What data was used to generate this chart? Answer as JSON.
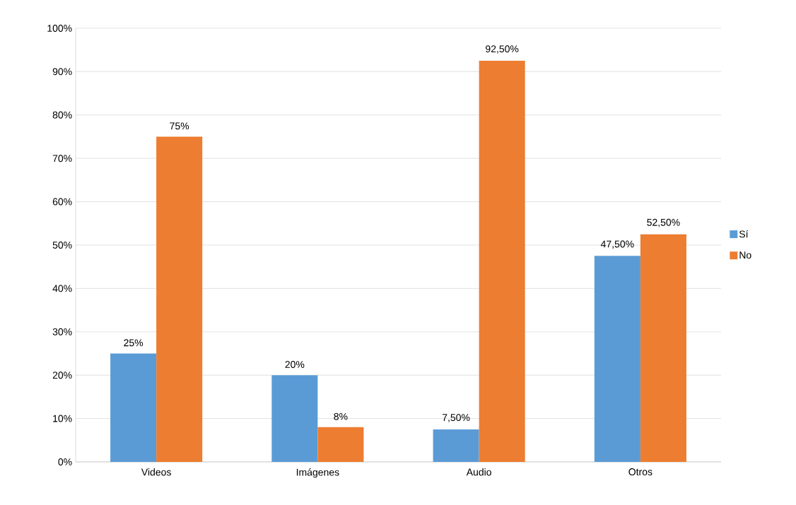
{
  "chart_data": {
    "type": "bar",
    "categories": [
      "Videos",
      "Imágenes",
      "Audio",
      "Otros"
    ],
    "series": [
      {
        "name": "Sí",
        "color": "#5b9bd5",
        "values": [
          25,
          20,
          7.5,
          47.5
        ],
        "value_labels": [
          "25%",
          "20%",
          "7,50%",
          "47,50%"
        ]
      },
      {
        "name": "No",
        "color": "#ed7d31",
        "values": [
          75,
          8,
          92.5,
          52.5
        ],
        "value_labels": [
          "75%",
          "8%",
          "92,50%",
          "52,50%"
        ]
      }
    ],
    "ylim": [
      0,
      100
    ],
    "yticks": [
      {
        "value": 0,
        "label": "0%"
      },
      {
        "value": 10,
        "label": "10%"
      },
      {
        "value": 20,
        "label": "20%"
      },
      {
        "value": 30,
        "label": "30%"
      },
      {
        "value": 40,
        "label": "40%"
      },
      {
        "value": 50,
        "label": "50%"
      },
      {
        "value": 60,
        "label": "60%"
      },
      {
        "value": 70,
        "label": "70%"
      },
      {
        "value": 80,
        "label": "80%"
      },
      {
        "value": 90,
        "label": "90%"
      },
      {
        "value": 100,
        "label": "100%"
      }
    ],
    "grid": "y",
    "legend": "right"
  }
}
